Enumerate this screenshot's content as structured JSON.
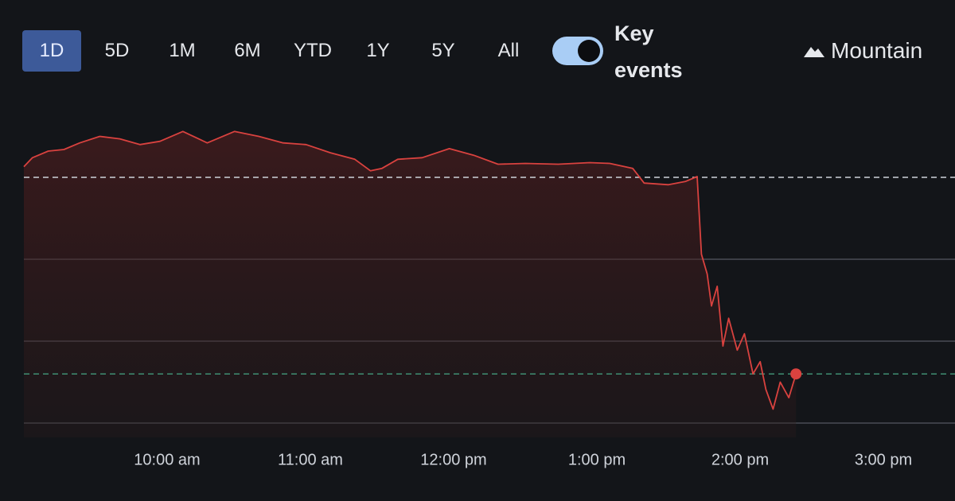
{
  "toolbar": {
    "ranges": [
      "1D",
      "5D",
      "1M",
      "6M",
      "YTD",
      "1Y",
      "5Y",
      "All"
    ],
    "active": 0,
    "toggle_label": "Key events",
    "toggle_on": true,
    "chart_style": "Mountain"
  },
  "chart_data": {
    "type": "line",
    "xlim": [
      9,
      15.5
    ],
    "xticks": [
      {
        "value": 10,
        "label": "10:00 am"
      },
      {
        "value": 11,
        "label": "11:00 am"
      },
      {
        "value": 12,
        "label": "12:00 pm"
      },
      {
        "value": 13,
        "label": "1:00 pm"
      },
      {
        "value": 14,
        "label": "2:00 pm"
      },
      {
        "value": 15,
        "label": "3:00 pm"
      }
    ],
    "ylim": [
      0,
      3.8
    ],
    "yticks": [
      0,
      1,
      2
    ],
    "reference_lines": [
      {
        "value": 3,
        "color": "#cfd3da"
      },
      {
        "value": 0.6,
        "color": "#3f8f72"
      }
    ],
    "series": [
      {
        "color": "#d9423f",
        "x": [
          9.0,
          9.06,
          9.17,
          9.28,
          9.39,
          9.53,
          9.67,
          9.81,
          9.95,
          10.11,
          10.28,
          10.47,
          10.64,
          10.81,
          10.97,
          11.14,
          11.31,
          11.42,
          11.5,
          11.61,
          11.78,
          11.97,
          12.14,
          12.31,
          12.5,
          12.73,
          12.95,
          13.09,
          13.25,
          13.33,
          13.5,
          13.62,
          13.7,
          13.73,
          13.77,
          13.8,
          13.84,
          13.88,
          13.92,
          13.98,
          14.03,
          14.09,
          14.14,
          14.18,
          14.23,
          14.28,
          14.34,
          14.39
        ],
        "values": [
          3.13,
          3.24,
          3.32,
          3.34,
          3.42,
          3.5,
          3.47,
          3.4,
          3.44,
          3.56,
          3.42,
          3.56,
          3.5,
          3.42,
          3.4,
          3.3,
          3.22,
          3.08,
          3.11,
          3.22,
          3.24,
          3.35,
          3.27,
          3.16,
          3.17,
          3.16,
          3.18,
          3.17,
          3.11,
          2.93,
          2.91,
          2.95,
          3.01,
          2.06,
          1.82,
          1.43,
          1.67,
          0.94,
          1.28,
          0.89,
          1.09,
          0.6,
          0.75,
          0.41,
          0.17,
          0.5,
          0.31,
          0.6
        ]
      }
    ]
  }
}
